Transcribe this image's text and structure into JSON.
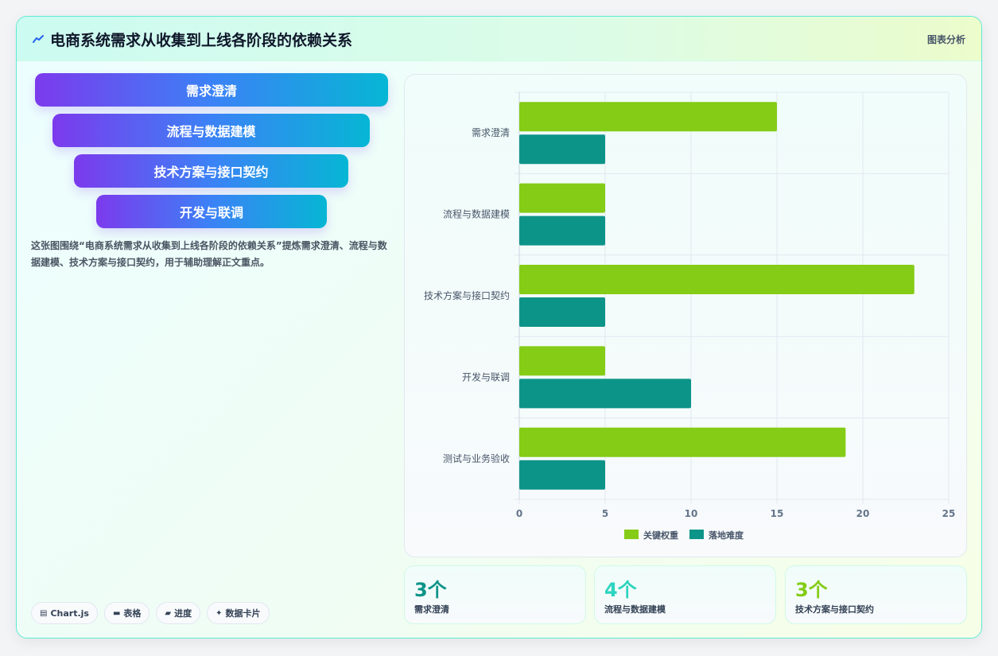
{
  "header": {
    "title": "电商系统需求从收集到上线各阶段的依赖关系",
    "tag": "图表分析"
  },
  "funnel": [
    "需求澄清",
    "流程与数据建模",
    "技术方案与接口契约",
    "开发与联调"
  ],
  "description": "这张图围绕“电商系统需求从收集到上线各阶段的依赖关系”提炼需求澄清、流程与数据建模、技术方案与接口契约，用于辅助理解正文重点。",
  "tags": [
    {
      "icon": "chart-icon",
      "label": "Chart.js"
    },
    {
      "icon": "table-icon",
      "label": "表格"
    },
    {
      "icon": "progress-icon",
      "label": "进度"
    },
    {
      "icon": "sparkle-icon",
      "label": "数据卡片"
    }
  ],
  "stats": [
    {
      "value": "3个",
      "label": "需求澄清",
      "color": "#0d9488"
    },
    {
      "value": "4个",
      "label": "流程与数据建模",
      "color": "#2dd4bf"
    },
    {
      "value": "3个",
      "label": "技术方案与接口契约",
      "color": "#84cc16"
    }
  ],
  "chart_data": {
    "type": "bar",
    "orientation": "horizontal",
    "categories": [
      "需求澄清",
      "流程与数据建模",
      "技术方案与接口契约",
      "开发与联调",
      "测试与业务验收"
    ],
    "series": [
      {
        "name": "关键权重",
        "values": [
          15,
          5,
          23,
          5,
          19
        ],
        "color": "#84cc16"
      },
      {
        "name": "落地难度",
        "values": [
          5,
          5,
          5,
          10,
          5
        ],
        "color": "#0d9488"
      }
    ],
    "xlim": [
      0,
      25
    ],
    "xticks": [
      0,
      5,
      10,
      15,
      20,
      25
    ],
    "grid": true,
    "legend": "bottom"
  }
}
